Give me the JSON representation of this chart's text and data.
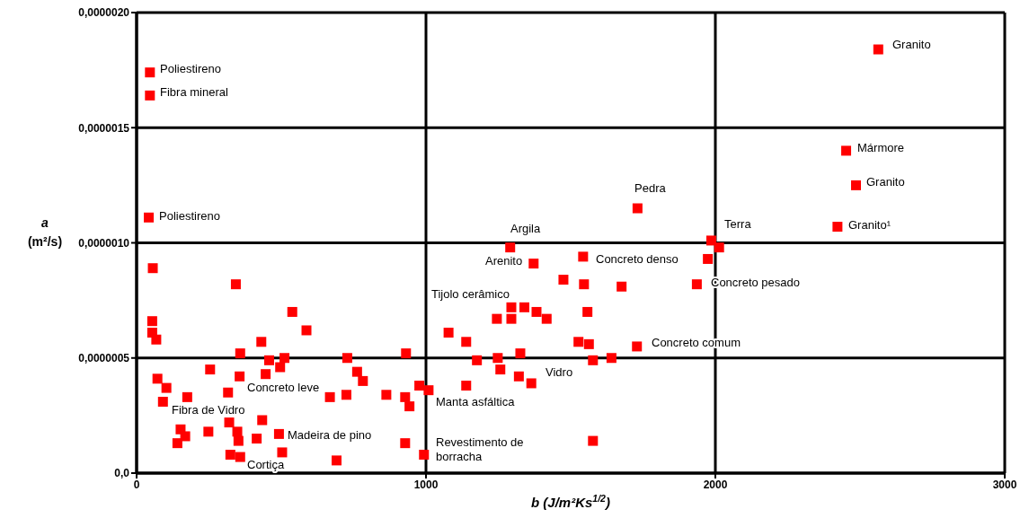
{
  "chart_data": {
    "type": "scatter",
    "xlabel": "b  (J/m²Ks$^{1/2}$)",
    "ylabel": "a\n(m²/s)",
    "x": [
      56,
      343,
      538,
      54,
      54,
      68,
      587,
      431,
      358,
      931,
      458,
      511,
      728,
      254,
      496,
      446,
      762,
      356,
      72,
      782,
      977,
      1009,
      103,
      316,
      668,
      725,
      863,
      928,
      943,
      91,
      175,
      434,
      320,
      152,
      168,
      248,
      348,
      141,
      352,
      415,
      492,
      928,
      324,
      358,
      503,
      691,
      993,
      46,
      46,
      42,
      1291,
      1372,
      1543,
      1475,
      1546,
      1676,
      1974,
      1986,
      2013,
      1936,
      1295,
      1340,
      1382,
      1417,
      1245,
      1295,
      1558,
      1078,
      1139,
      1527,
      1563,
      1729,
      1326,
      1176,
      1248,
      1577,
      1641,
      1257,
      1321,
      1364,
      1139,
      1577,
      1731,
      2563,
      2452,
      2486,
      2422
    ],
    "series": [
      {
        "color": "#ff0000",
        "values": [
          8.9e-07,
          8.2e-07,
          7e-07,
          6.6e-07,
          6.1e-07,
          5.8e-07,
          6.2e-07,
          5.7e-07,
          5.2e-07,
          5.2e-07,
          4.9e-07,
          5e-07,
          5e-07,
          4.5e-07,
          4.6e-07,
          4.3e-07,
          4.4e-07,
          4.2e-07,
          4.1e-07,
          4e-07,
          3.8e-07,
          3.6e-07,
          3.7e-07,
          3.5e-07,
          3.3e-07,
          3.4e-07,
          3.4e-07,
          3.3e-07,
          2.9e-07,
          3.1e-07,
          3.3e-07,
          2.3e-07,
          2.2e-07,
          1.9e-07,
          1.6e-07,
          1.8e-07,
          1.8e-07,
          1.3e-07,
          1.4e-07,
          1.5e-07,
          1.7e-07,
          1.3e-07,
          8e-08,
          7e-08,
          9e-08,
          5.5e-08,
          8e-08,
          1.74e-06,
          1.64e-06,
          1.11e-06,
          9.8e-07,
          9.1e-07,
          9.4e-07,
          8.4e-07,
          8.2e-07,
          8.1e-07,
          9.3e-07,
          1.01e-06,
          9.8e-07,
          8.2e-07,
          7.2e-07,
          7.2e-07,
          7e-07,
          6.7e-07,
          6.7e-07,
          6.7e-07,
          7e-07,
          6.1e-07,
          5.7e-07,
          5.7e-07,
          5.6e-07,
          5.5e-07,
          5.2e-07,
          4.9e-07,
          5e-07,
          4.9e-07,
          5e-07,
          4.5e-07,
          4.2e-07,
          3.9e-07,
          3.8e-07,
          1.4e-07,
          1.15e-06,
          1.84e-06,
          1.4e-06,
          1.25e-06,
          1.07e-06
        ]
      }
    ],
    "xlim": [
      0,
      3000
    ],
    "xticks": [
      0,
      1000,
      2000,
      3000
    ],
    "ylim": [
      0,
      2e-06
    ],
    "yticks": [
      {
        "value": 0,
        "label": "0,0"
      },
      {
        "value": 5e-07,
        "label": "0,0000005"
      },
      {
        "value": 1e-06,
        "label": "0,0000010"
      },
      {
        "value": 1.5e-06,
        "label": "0,0000015"
      },
      {
        "value": 2e-06,
        "label": "0,0000020"
      }
    ],
    "grid": true,
    "marker": "square",
    "annotations": [
      "Poliestireno",
      "Fibra mineral",
      "Poliestireno",
      "Granito",
      "Mármore",
      "Granito",
      "Granito¹",
      "Pedra",
      "Terra",
      "Argila",
      "Arenito",
      "Concreto denso",
      "Concreto pesado",
      "Tijolo cerâmico",
      "Concreto comum",
      "Vidro",
      "Manta asfáltica",
      "Revestimento de\nborracha",
      "Concreto leve",
      "Fibra de Vidro",
      "Madeira de pino",
      "Cortiça"
    ]
  }
}
